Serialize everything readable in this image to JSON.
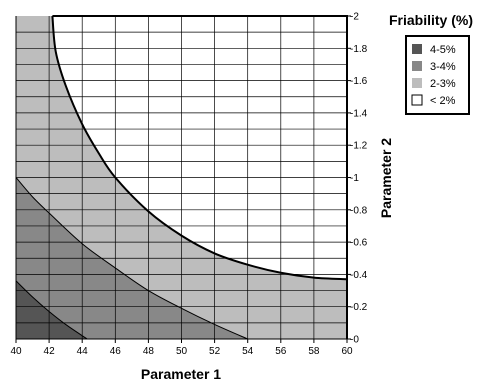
{
  "chart_data": {
    "type": "contour",
    "title": "",
    "xlabel": "Parameter 1",
    "ylabel": "Parameter 2",
    "xlim": [
      40,
      60
    ],
    "ylim": [
      0,
      2
    ],
    "x_ticks": [
      "40",
      "42",
      "44",
      "46",
      "48",
      "50",
      "52",
      "54",
      "56",
      "58",
      "60"
    ],
    "y_ticks": [
      "0",
      "0.2",
      "0.4",
      "0.6",
      "0.8",
      "1",
      "1.2",
      "1.4",
      "1.6",
      "1.8",
      "2"
    ],
    "grid": true,
    "legend": {
      "title": "Friability (%)",
      "placement": "right",
      "items": [
        {
          "label": "4-5%",
          "color": "#555555"
        },
        {
          "label": "3-4%",
          "color": "#888888"
        },
        {
          "label": "2-3%",
          "color": "#bdbdbd"
        },
        {
          "label": "< 2%",
          "color": "#ffffff"
        }
      ]
    },
    "boundaries": [
      {
        "name": "4-5% / 3-4%",
        "points": [
          [
            40,
            0.36
          ],
          [
            41,
            0.26
          ],
          [
            42,
            0.17
          ],
          [
            43,
            0.09
          ],
          [
            44.3,
            0
          ]
        ]
      },
      {
        "name": "3-4% / 2-3%",
        "points": [
          [
            40,
            1.0
          ],
          [
            41,
            0.88
          ],
          [
            42,
            0.78
          ],
          [
            44,
            0.59
          ],
          [
            46,
            0.44
          ],
          [
            48,
            0.3
          ],
          [
            50,
            0.19
          ],
          [
            52,
            0.09
          ],
          [
            54,
            0
          ]
        ]
      },
      {
        "name": "2-3% / < 2%",
        "points": [
          [
            42.2,
            2.0
          ],
          [
            42.4,
            1.78
          ],
          [
            43,
            1.57
          ],
          [
            44,
            1.33
          ],
          [
            45,
            1.15
          ],
          [
            46,
            1.0
          ],
          [
            48,
            0.79
          ],
          [
            50,
            0.64
          ],
          [
            52,
            0.53
          ],
          [
            54,
            0.46
          ],
          [
            56,
            0.41
          ],
          [
            58,
            0.38
          ],
          [
            60,
            0.37
          ]
        ]
      }
    ]
  }
}
